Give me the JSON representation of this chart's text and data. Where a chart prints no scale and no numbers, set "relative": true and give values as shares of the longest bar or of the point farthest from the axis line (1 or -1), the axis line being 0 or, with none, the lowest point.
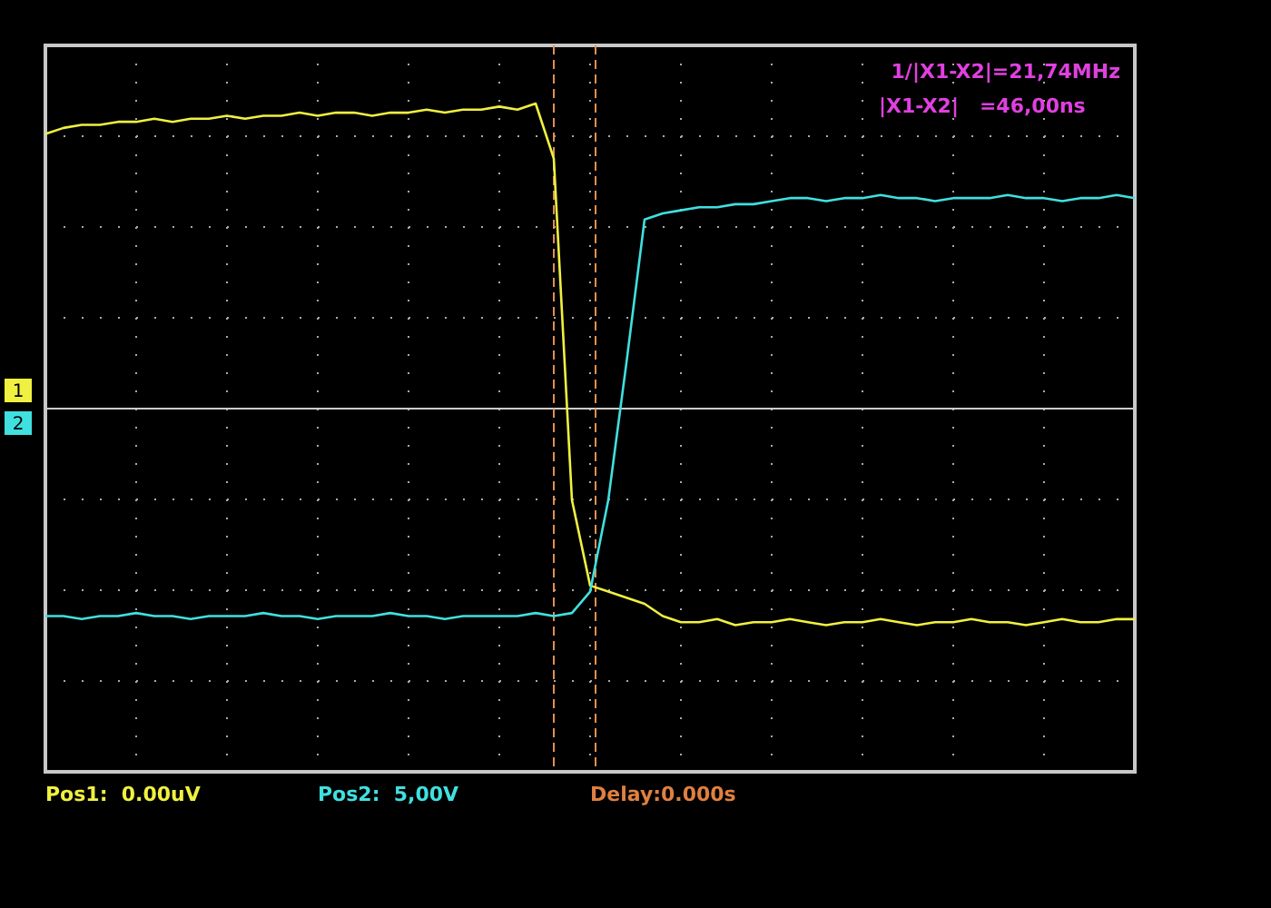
{
  "chart_data": {
    "type": "line",
    "relative": true,
    "grid": true,
    "legend": "left",
    "line_style": "solid",
    "categories": [
      null,
      null,
      null,
      null,
      null,
      null,
      null,
      null,
      null,
      null,
      null,
      null,
      null,
      null,
      null,
      null,
      null,
      null,
      null,
      null,
      null,
      null,
      null,
      null,
      null,
      null,
      null,
      null,
      null,
      null,
      null,
      null,
      null,
      null,
      null,
      null,
      null,
      null,
      null,
      null,
      null,
      null,
      null,
      null,
      null,
      null,
      null,
      null,
      null,
      null,
      null,
      null,
      null,
      null,
      null,
      null,
      null,
      null,
      null,
      null,
      null
    ],
    "series": [
      {
        "name": "1",
        "color": "#f0f040",
        "values": [
          0.9,
          0.92,
          0.93,
          0.93,
          0.94,
          0.94,
          0.95,
          0.94,
          0.95,
          0.95,
          0.96,
          0.95,
          0.96,
          0.96,
          0.97,
          0.96,
          0.97,
          0.97,
          0.96,
          0.97,
          0.97,
          0.98,
          0.97,
          0.98,
          0.98,
          0.99,
          0.98,
          1,
          0.82,
          -0.3,
          -0.58,
          -0.6,
          -0.62,
          -0.64,
          -0.68,
          -0.7,
          -0.7,
          -0.69,
          -0.71,
          -0.7,
          -0.7,
          -0.69,
          -0.7,
          -0.71,
          -0.7,
          -0.7,
          -0.69,
          -0.7,
          -0.71,
          -0.7,
          -0.7,
          -0.69,
          -0.7,
          -0.7,
          -0.71,
          -0.7,
          -0.69,
          -0.7,
          -0.7,
          -0.69,
          -0.69
        ]
      },
      {
        "name": "2",
        "color": "#40e0e0",
        "values": [
          -0.68,
          -0.68,
          -0.69,
          -0.68,
          -0.68,
          -0.67,
          -0.68,
          -0.68,
          -0.69,
          -0.68,
          -0.68,
          -0.68,
          -0.67,
          -0.68,
          -0.68,
          -0.69,
          -0.68,
          -0.68,
          -0.68,
          -0.67,
          -0.68,
          -0.68,
          -0.69,
          -0.68,
          -0.68,
          -0.68,
          -0.68,
          -0.67,
          -0.68,
          -0.67,
          -0.6,
          -0.3,
          0.15,
          0.62,
          0.64,
          0.65,
          0.66,
          0.66,
          0.67,
          0.67,
          0.68,
          0.69,
          0.69,
          0.68,
          0.69,
          0.69,
          0.7,
          0.69,
          0.69,
          0.68,
          0.69,
          0.69,
          0.69,
          0.7,
          0.69,
          0.69,
          0.68,
          0.69,
          0.69,
          0.7,
          0.69
        ]
      }
    ],
    "annotations": [
      "1/|X1-X2|=21,74MHz",
      "|X1-X2|   =46,00ns",
      "Pos1:  0.00uV",
      "Pos2:  5,00V",
      "Delay:0.000s"
    ]
  }
}
